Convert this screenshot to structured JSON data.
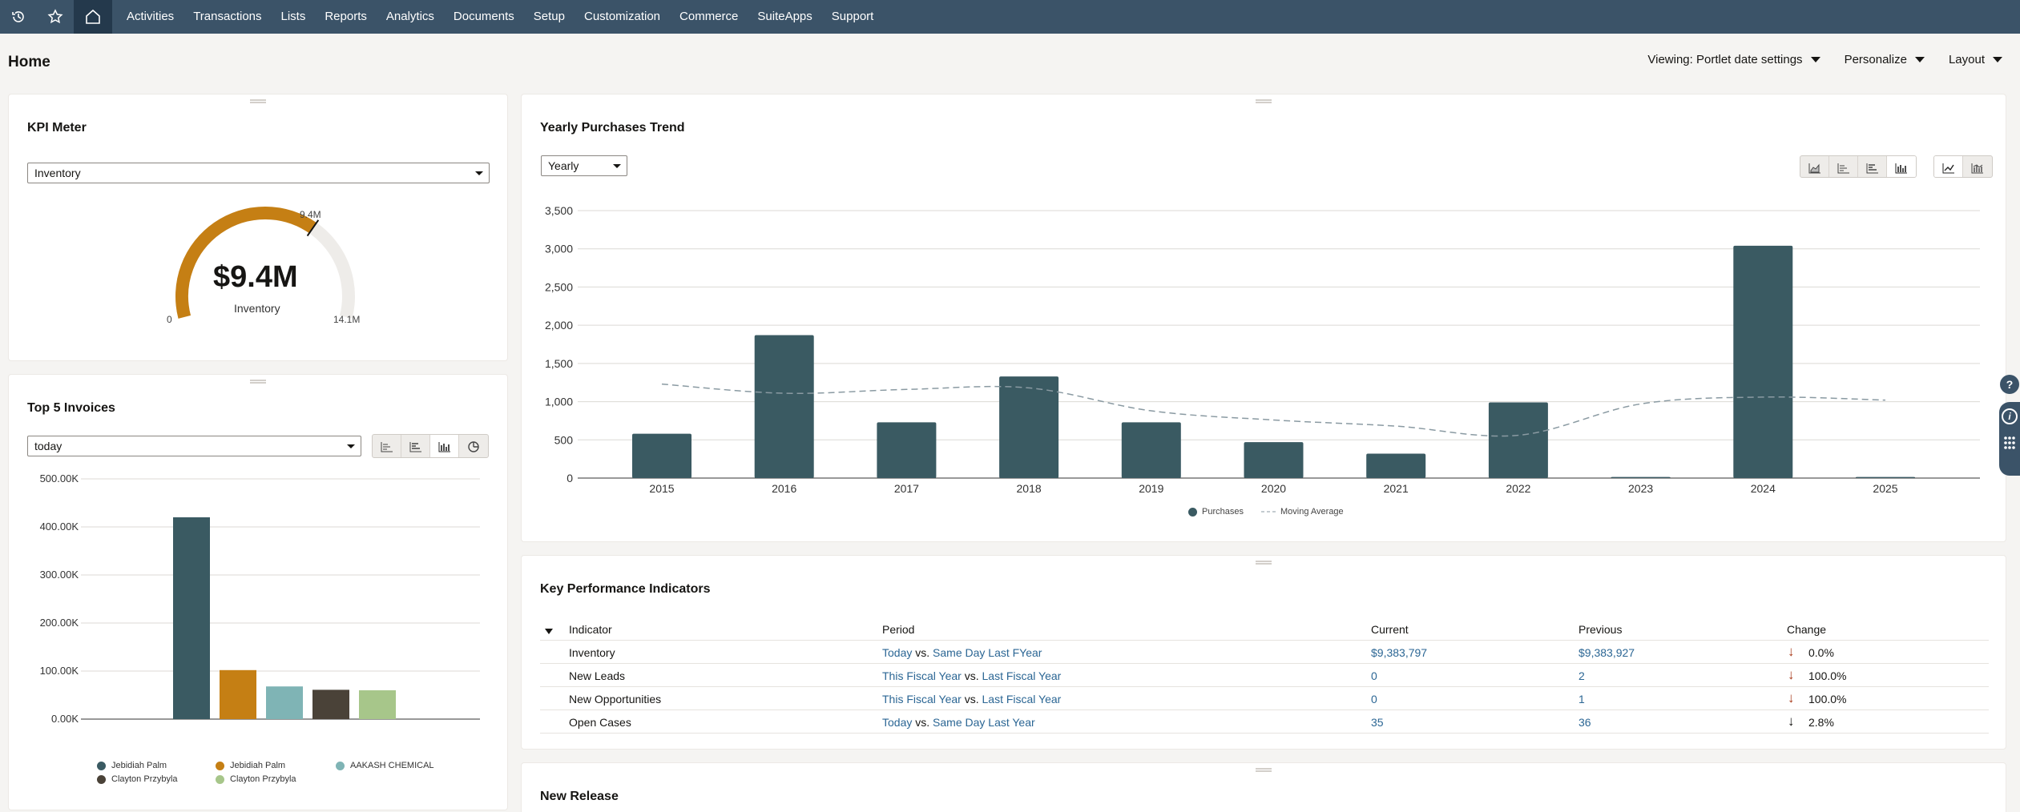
{
  "nav": {
    "items": [
      "Activities",
      "Transactions",
      "Lists",
      "Reports",
      "Analytics",
      "Documents",
      "Setup",
      "Customization",
      "Commerce",
      "SuiteApps",
      "Support"
    ]
  },
  "header": {
    "title": "Home",
    "viewing": "Viewing: Portlet date settings",
    "personalize": "Personalize",
    "layout": "Layout"
  },
  "kpi_meter": {
    "title": "KPI Meter",
    "selected": "Inventory",
    "value": "$9.4M",
    "label": "Inventory",
    "min": "0",
    "max": "14.1M",
    "marker": "9.4M",
    "fraction": 0.667,
    "color": "#c57f14"
  },
  "top_invoices": {
    "title": "Top 5 Invoices",
    "period": "today",
    "chart_data": {
      "type": "bar",
      "categories": [
        "Jebidiah Palm",
        "Jebidiah Palm",
        "AAKASH CHEMICAL",
        "Clayton Przybyla",
        "Clayton Przybyla"
      ],
      "values": [
        420000,
        102000,
        68000,
        61000,
        60000
      ],
      "colors": [
        "#3a5a62",
        "#c57f14",
        "#7fb4b5",
        "#4a4238",
        "#a7c68a"
      ],
      "ylim": [
        0,
        500000
      ],
      "yticks": [
        "0.00K",
        "100.00K",
        "200.00K",
        "300.00K",
        "400.00K",
        "500.00K"
      ],
      "legend": [
        "Jebidiah Palm",
        "Jebidiah Palm",
        "AAKASH CHEMICAL",
        "Clayton Przybyla",
        "Clayton Przybyla"
      ]
    }
  },
  "yearly": {
    "title": "Yearly Purchases Trend",
    "period": "Yearly",
    "chart_data": {
      "type": "bar",
      "categories": [
        "2015",
        "2016",
        "2017",
        "2018",
        "2019",
        "2020",
        "2021",
        "2022",
        "2023",
        "2024",
        "2025"
      ],
      "series": [
        {
          "name": "Purchases",
          "type": "bar",
          "color": "#3a5a62",
          "values": [
            580,
            1870,
            730,
            1330,
            730,
            470,
            320,
            990,
            15,
            3040,
            15
          ]
        },
        {
          "name": "Moving Average",
          "type": "line",
          "color": "#8a9aa2",
          "values": [
            1230,
            1110,
            1160,
            1180,
            880,
            760,
            680,
            560,
            970,
            1060,
            1020
          ]
        }
      ],
      "ylim": [
        0,
        3500
      ],
      "yticks": [
        "0",
        "500",
        "1,000",
        "1,500",
        "2,000",
        "2,500",
        "3,000",
        "3,500"
      ],
      "legend_position": "bottom-center"
    }
  },
  "kpis": {
    "title": "Key Performance Indicators",
    "headers": {
      "indicator": "Indicator",
      "period": "Period",
      "current": "Current",
      "previous": "Previous",
      "change": "Change"
    },
    "vs": "vs.",
    "rows": [
      {
        "indicator": "Inventory",
        "p1": "Today",
        "p2": "Same Day Last FYear",
        "current": "$9,383,797",
        "previous": "$9,383,927",
        "change": "0.0%"
      },
      {
        "indicator": "New Leads",
        "p1": "This Fiscal Year",
        "p2": "Last Fiscal Year",
        "current": "0",
        "previous": "2",
        "change": "100.0%"
      },
      {
        "indicator": "New Opportunities",
        "p1": "This Fiscal Year",
        "p2": "Last Fiscal Year",
        "current": "0",
        "previous": "1",
        "change": "100.0%"
      },
      {
        "indicator": "Open Cases",
        "p1": "Today",
        "p2": "Same Day Last Year",
        "current": "35",
        "previous": "36",
        "change": "2.8%"
      }
    ]
  },
  "new_release": {
    "title": "New Release"
  },
  "side": {
    "help": "?",
    "info": "i"
  }
}
